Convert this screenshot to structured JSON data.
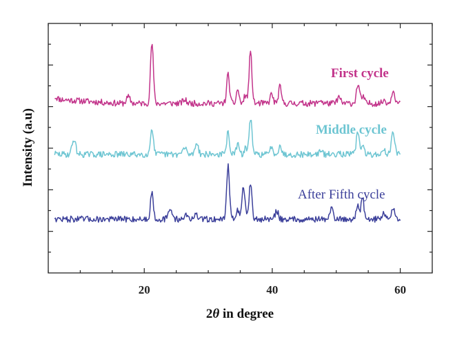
{
  "chart_data": {
    "type": "line",
    "xlabel_prefix": "2",
    "xlabel_symbol": "θ",
    "xlabel_suffix": " in degree",
    "ylabel": "Intensity (a.u)",
    "xlim": [
      5,
      65
    ],
    "x_ticks": [
      20,
      40,
      60
    ],
    "y_ticks_shown": false,
    "grid": false,
    "series": [
      {
        "name": "First cycle",
        "color": "#c2338a",
        "baseline": 0.62,
        "peaks": [
          {
            "x": 6.0,
            "h": 0.3,
            "w": 0.4
          },
          {
            "x": 17.5,
            "h": 0.9,
            "w": 0.3
          },
          {
            "x": 21.2,
            "h": 8.8,
            "w": 0.22
          },
          {
            "x": 26.3,
            "h": 0.5,
            "w": 0.3
          },
          {
            "x": 33.1,
            "h": 4.2,
            "w": 0.22
          },
          {
            "x": 34.6,
            "h": 2.1,
            "w": 0.2
          },
          {
            "x": 35.8,
            "h": 1.2,
            "w": 0.2
          },
          {
            "x": 36.6,
            "h": 7.4,
            "w": 0.22
          },
          {
            "x": 39.9,
            "h": 1.4,
            "w": 0.22
          },
          {
            "x": 41.2,
            "h": 2.4,
            "w": 0.22
          },
          {
            "x": 47.5,
            "h": 0.5,
            "w": 0.25
          },
          {
            "x": 50.4,
            "h": 0.9,
            "w": 0.25
          },
          {
            "x": 53.4,
            "h": 2.8,
            "w": 0.25
          },
          {
            "x": 54.2,
            "h": 1.0,
            "w": 0.2
          },
          {
            "x": 57.5,
            "h": 0.5,
            "w": 0.25
          },
          {
            "x": 58.9,
            "h": 2.0,
            "w": 0.25
          }
        ]
      },
      {
        "name": "Middle cycle",
        "color": "#6dc5d2",
        "baseline": 0.0,
        "peaks": [
          {
            "x": 5.5,
            "h": 0.3,
            "w": 0.4
          },
          {
            "x": 9.0,
            "h": 2.2,
            "w": 0.28
          },
          {
            "x": 21.2,
            "h": 3.9,
            "w": 0.22
          },
          {
            "x": 26.3,
            "h": 0.9,
            "w": 0.3
          },
          {
            "x": 28.2,
            "h": 1.8,
            "w": 0.25
          },
          {
            "x": 33.1,
            "h": 3.2,
            "w": 0.22
          },
          {
            "x": 34.6,
            "h": 1.6,
            "w": 0.2
          },
          {
            "x": 35.8,
            "h": 0.9,
            "w": 0.2
          },
          {
            "x": 36.6,
            "h": 5.3,
            "w": 0.22
          },
          {
            "x": 39.9,
            "h": 1.2,
            "w": 0.22
          },
          {
            "x": 41.2,
            "h": 1.4,
            "w": 0.22
          },
          {
            "x": 47.5,
            "h": 0.5,
            "w": 0.25
          },
          {
            "x": 50.4,
            "h": 0.4,
            "w": 0.25
          },
          {
            "x": 53.4,
            "h": 3.4,
            "w": 0.25
          },
          {
            "x": 54.2,
            "h": 1.0,
            "w": 0.2
          },
          {
            "x": 57.5,
            "h": 0.6,
            "w": 0.25
          },
          {
            "x": 58.9,
            "h": 3.3,
            "w": 0.25
          }
        ]
      },
      {
        "name": "After Fifth cycle",
        "color": "#3b3f9a",
        "baseline": 0.0,
        "peaks": [
          {
            "x": 5.6,
            "h": 0.6,
            "w": 0.3
          },
          {
            "x": 21.2,
            "h": 3.9,
            "w": 0.22
          },
          {
            "x": 24.1,
            "h": 1.4,
            "w": 0.3
          },
          {
            "x": 26.5,
            "h": 0.6,
            "w": 0.3
          },
          {
            "x": 28.0,
            "h": 0.6,
            "w": 0.3
          },
          {
            "x": 33.1,
            "h": 7.9,
            "w": 0.22
          },
          {
            "x": 34.6,
            "h": 1.4,
            "w": 0.2
          },
          {
            "x": 35.5,
            "h": 5.0,
            "w": 0.22
          },
          {
            "x": 36.6,
            "h": 5.0,
            "w": 0.22
          },
          {
            "x": 40.7,
            "h": 1.2,
            "w": 0.25
          },
          {
            "x": 49.3,
            "h": 1.6,
            "w": 0.25
          },
          {
            "x": 53.3,
            "h": 2.0,
            "w": 0.22
          },
          {
            "x": 54.1,
            "h": 3.3,
            "w": 0.22
          },
          {
            "x": 57.4,
            "h": 1.0,
            "w": 0.25
          },
          {
            "x": 58.9,
            "h": 1.6,
            "w": 0.25
          }
        ]
      }
    ]
  }
}
